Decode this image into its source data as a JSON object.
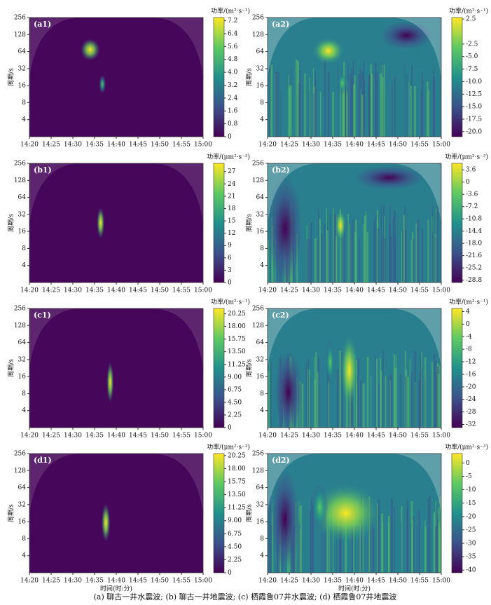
{
  "chart_data": [
    {
      "type": "heatmap",
      "title": "(a1)",
      "ylabel": "周期/s",
      "yscale": "log2",
      "ylim": [
        2,
        256
      ],
      "yticks": [
        4,
        8,
        16,
        32,
        64,
        128,
        256
      ],
      "xticks": [
        "14:20",
        "14:25",
        "14:30",
        "14:35",
        "14:40",
        "14:45",
        "14:50",
        "14:55",
        "15:00"
      ],
      "colormap": "viridis",
      "colorbar_label": "功率/(m²·s⁻¹)",
      "clim": [
        0,
        7.4
      ],
      "cticks": [
        0,
        0.8,
        1.6,
        2.4,
        3.2,
        {
          "value": 4,
          "label": "4.0"
        },
        4.8,
        5.6,
        6.4,
        7.2
      ]
    },
    {
      "type": "heatmap",
      "title": "(a2)",
      "ylabel": "周期/s",
      "yscale": "log2",
      "ylim": [
        2,
        256
      ],
      "yticks": [
        4,
        8,
        16,
        32,
        64,
        128,
        256
      ],
      "xticks": [
        "14:20",
        "14:25",
        "14:30",
        "14:35",
        "14:40",
        "14:45",
        "14:50",
        "14:55",
        "15:00"
      ],
      "colormap": "viridis",
      "colorbar_label": "功率/(m²·s⁻¹)",
      "clim": [
        -21,
        2.8
      ],
      "cticks": [
        2.5,
        -2.5,
        {
          "value": -5,
          "label": "-5.0"
        },
        -7.5,
        {
          "value": -10,
          "label": "-10.0"
        },
        -12.5,
        {
          "value": -15,
          "label": "-15.0"
        },
        -17.5,
        {
          "value": -20,
          "label": "-20.0"
        }
      ]
    },
    {
      "type": "heatmap",
      "title": "(b1)",
      "ylabel": "周期/s",
      "yscale": "log2",
      "ylim": [
        2,
        256
      ],
      "yticks": [
        4,
        8,
        16,
        32,
        64,
        128,
        256
      ],
      "xticks": [
        "14:20",
        "14:25",
        "14:30",
        "14:35",
        "14:40",
        "14:45",
        "14:50",
        "14:55",
        "15:00"
      ],
      "colormap": "viridis",
      "colorbar_label": "功率/(μm²·s⁻³)",
      "clim": [
        0,
        29
      ],
      "cticks": [
        0,
        3,
        6,
        9,
        12,
        15,
        18,
        21,
        24,
        27
      ]
    },
    {
      "type": "heatmap",
      "title": "(b2)",
      "ylabel": "周期/s",
      "yscale": "log2",
      "ylim": [
        2,
        256
      ],
      "yticks": [
        4,
        8,
        16,
        32,
        64,
        128,
        256
      ],
      "xticks": [
        "14:20",
        "14:25",
        "14:30",
        "14:35",
        "14:40",
        "14:45",
        "14:50",
        "14:55",
        "15:00"
      ],
      "colormap": "viridis",
      "colorbar_label": "功率/(μm²·s⁻³)",
      "clim": [
        -29.5,
        5.5
      ],
      "cticks": [
        3.6,
        0,
        -3.6,
        -7.2,
        -10.8,
        -14.4,
        {
          "value": -18,
          "label": "-18.0"
        },
        -21.6,
        -25.2,
        -28.8
      ]
    },
    {
      "type": "heatmap",
      "title": "(c1)",
      "ylabel": "周期/s",
      "yscale": "log2",
      "ylim": [
        2,
        256
      ],
      "yticks": [
        4,
        8,
        16,
        32,
        64,
        128,
        256
      ],
      "xticks": [
        "14:20",
        "14:25",
        "14:30",
        "14:35",
        "14:40",
        "14:45",
        "14:50",
        "14:55",
        "15:00"
      ],
      "colormap": "viridis",
      "colorbar_label": "功率/(m²·s⁻¹)",
      "clim": [
        0,
        21.2
      ],
      "cticks": [
        0,
        2.25,
        {
          "value": 4.5,
          "label": "4.50"
        },
        6.75,
        {
          "value": 9,
          "label": "9.00"
        },
        11.25,
        {
          "value": 13.5,
          "label": "13.50"
        },
        15.75,
        {
          "value": 18,
          "label": "18.00"
        },
        20.25
      ]
    },
    {
      "type": "heatmap",
      "title": "(c2)",
      "ylabel": "周期/s",
      "yscale": "log2",
      "ylim": [
        2,
        256
      ],
      "yticks": [
        4,
        8,
        16,
        32,
        64,
        128,
        256
      ],
      "xticks": [
        "14:20",
        "14:25",
        "14:30",
        "14:35",
        "14:40",
        "14:45",
        "14:50",
        "14:55",
        "15:00"
      ],
      "colormap": "viridis",
      "colorbar_label": "功率/(m²·s⁻¹)",
      "clim": [
        -33,
        5
      ],
      "cticks": [
        4,
        0,
        -4,
        -8,
        -12,
        -16,
        -20,
        -24,
        -28,
        -32
      ]
    },
    {
      "type": "heatmap",
      "title": "(d1)",
      "ylabel": "周期/s",
      "xlabel": "时间(时:分)",
      "yscale": "log2",
      "ylim": [
        2,
        256
      ],
      "yticks": [
        4,
        8,
        16,
        32,
        64,
        128,
        256
      ],
      "xticks": [
        "14:20",
        "14:25",
        "14:30",
        "14:35",
        "14:40",
        "14:45",
        "14:50",
        "14:55",
        "15:00"
      ],
      "colormap": "viridis",
      "colorbar_label": "功率/(μm²·s⁻³)",
      "clim": [
        0,
        20.6
      ],
      "cticks": [
        0,
        2.25,
        {
          "value": 4.5,
          "label": "4.50"
        },
        6.75,
        {
          "value": 9,
          "label": "9.00"
        },
        11.25,
        {
          "value": 13.5,
          "label": "13.50"
        },
        15.75,
        {
          "value": 18,
          "label": "18.00"
        },
        20.25
      ]
    },
    {
      "type": "heatmap",
      "title": "(d2)",
      "ylabel": "周期/s",
      "xlabel": "时间(时:分)",
      "yscale": "log2",
      "ylim": [
        2,
        256
      ],
      "yticks": [
        4,
        8,
        16,
        32,
        64,
        128,
        256
      ],
      "xticks": [
        "14:20",
        "14:25",
        "14:30",
        "14:35",
        "14:40",
        "14:45",
        "14:50",
        "14:55",
        "15:00"
      ],
      "colormap": "viridis",
      "colorbar_label": "功率/(μm²·s⁻³)",
      "clim": [
        -41,
        3.5
      ],
      "cticks": [
        0,
        -5,
        -10,
        -15,
        -20,
        -25,
        -30,
        -35,
        -40
      ]
    }
  ],
  "caption": "(a) 聊古一井水震波; (b) 聊古一井地震波; (c) 栖霞鲁07井水震波; (d) 栖霞鲁07井地震波"
}
